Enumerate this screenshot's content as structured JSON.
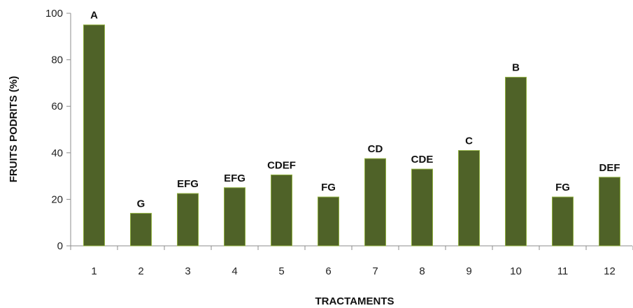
{
  "chart_data": {
    "type": "bar",
    "title": "",
    "xlabel": "TRACTAMENTS",
    "ylabel": "FRUITS PODRITS (%)",
    "ylim": [
      0,
      100
    ],
    "yticks": [
      0,
      20,
      40,
      60,
      80,
      100
    ],
    "grid": false,
    "legend": "none",
    "categories": [
      "1",
      "2",
      "3",
      "4",
      "5",
      "6",
      "7",
      "8",
      "9",
      "10",
      "11",
      "12"
    ],
    "values": [
      95,
      14,
      22.5,
      25,
      30.5,
      21,
      37.5,
      33,
      41,
      72.5,
      21,
      29.5
    ],
    "annotations": [
      "A",
      "G",
      "EFG",
      "EFG",
      "CDEF",
      "FG",
      "CD",
      "CDE",
      "C",
      "B",
      "FG",
      "DEF"
    ],
    "colors": {
      "bar_fill": "#4f6228",
      "bar_stroke": "#8faf3f",
      "axis": "#8c8c8c"
    }
  }
}
